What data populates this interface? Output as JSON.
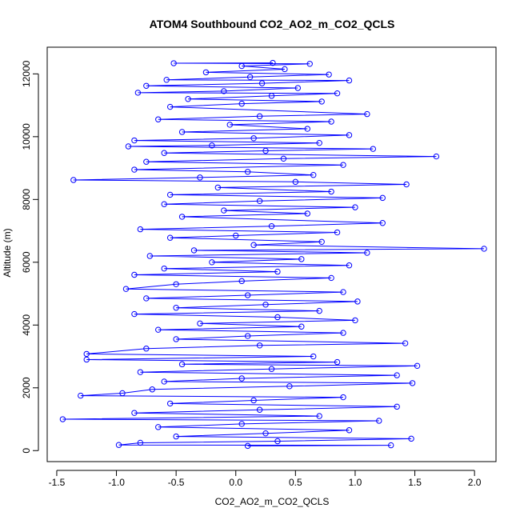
{
  "chart_data": {
    "type": "scatter",
    "title": "ATOM4 Southbound CO2_AO2_m_CO2_QCLS",
    "xlabel": "CO2_AO2_m_CO2_QCLS",
    "ylabel": "Altitude (m)",
    "xlim": [
      -1.58,
      2.18
    ],
    "ylim": [
      -350,
      12850
    ],
    "x_ticks": [
      -1.5,
      -1.0,
      -0.5,
      0.0,
      0.5,
      1.0,
      1.5,
      2.0
    ],
    "x_tick_labels": [
      "-1.5",
      "-1.0",
      "-0.5",
      "0.0",
      "0.5",
      "1.0",
      "1.5",
      "2.0"
    ],
    "y_ticks": [
      0,
      2000,
      4000,
      6000,
      8000,
      10000,
      12000
    ],
    "y_tick_labels": [
      "0",
      "2000",
      "4000",
      "6000",
      "8000",
      "10000",
      "12000"
    ],
    "series": [
      {
        "color": "#0000ff",
        "marker": "open-circle",
        "connected": true,
        "points": [
          [
            0.31,
            12350
          ],
          [
            -0.52,
            12340
          ],
          [
            0.62,
            12320
          ],
          [
            0.05,
            12250
          ],
          [
            0.41,
            12150
          ],
          [
            -0.25,
            12050
          ],
          [
            0.78,
            11980
          ],
          [
            0.12,
            11900
          ],
          [
            -0.58,
            11810
          ],
          [
            0.95,
            11790
          ],
          [
            0.22,
            11700
          ],
          [
            -0.75,
            11620
          ],
          [
            0.52,
            11550
          ],
          [
            -0.1,
            11450
          ],
          [
            -0.82,
            11400
          ],
          [
            0.85,
            11380
          ],
          [
            0.3,
            11300
          ],
          [
            -0.4,
            11200
          ],
          [
            0.72,
            11120
          ],
          [
            0.05,
            11050
          ],
          [
            -0.55,
            10950
          ],
          [
            1.1,
            10720
          ],
          [
            0.2,
            10650
          ],
          [
            -0.65,
            10550
          ],
          [
            0.8,
            10480
          ],
          [
            -0.05,
            10380
          ],
          [
            0.6,
            10250
          ],
          [
            -0.45,
            10150
          ],
          [
            0.95,
            10050
          ],
          [
            0.15,
            9950
          ],
          [
            -0.85,
            9880
          ],
          [
            0.7,
            9800
          ],
          [
            -0.2,
            9720
          ],
          [
            -0.9,
            9690
          ],
          [
            1.15,
            9610
          ],
          [
            0.25,
            9550
          ],
          [
            -0.6,
            9480
          ],
          [
            1.68,
            9370
          ],
          [
            0.4,
            9300
          ],
          [
            -0.75,
            9200
          ],
          [
            0.9,
            9100
          ],
          [
            -0.85,
            8950
          ],
          [
            0.1,
            8880
          ],
          [
            0.65,
            8780
          ],
          [
            -0.3,
            8700
          ],
          [
            -1.36,
            8620
          ],
          [
            0.5,
            8560
          ],
          [
            1.43,
            8480
          ],
          [
            -0.15,
            8380
          ],
          [
            0.8,
            8250
          ],
          [
            -0.55,
            8150
          ],
          [
            1.23,
            8050
          ],
          [
            0.2,
            7950
          ],
          [
            -0.6,
            7850
          ],
          [
            1.0,
            7750
          ],
          [
            -0.1,
            7650
          ],
          [
            0.6,
            7550
          ],
          [
            -0.45,
            7450
          ],
          [
            1.23,
            7250
          ],
          [
            0.3,
            7150
          ],
          [
            -0.8,
            7050
          ],
          [
            0.85,
            6950
          ],
          [
            0.0,
            6850
          ],
          [
            -0.55,
            6780
          ],
          [
            0.72,
            6650
          ],
          [
            0.15,
            6550
          ],
          [
            2.08,
            6430
          ],
          [
            -0.35,
            6380
          ],
          [
            1.1,
            6300
          ],
          [
            -0.72,
            6200
          ],
          [
            0.55,
            6100
          ],
          [
            -0.2,
            6000
          ],
          [
            0.95,
            5900
          ],
          [
            -0.6,
            5800
          ],
          [
            0.35,
            5700
          ],
          [
            -0.85,
            5600
          ],
          [
            0.8,
            5500
          ],
          [
            0.05,
            5400
          ],
          [
            -0.5,
            5300
          ],
          [
            -0.92,
            5150
          ],
          [
            0.9,
            5050
          ],
          [
            0.1,
            4950
          ],
          [
            -0.75,
            4850
          ],
          [
            1.02,
            4750
          ],
          [
            0.25,
            4650
          ],
          [
            -0.5,
            4550
          ],
          [
            0.7,
            4450
          ],
          [
            -0.85,
            4350
          ],
          [
            0.35,
            4250
          ],
          [
            1.0,
            4150
          ],
          [
            -0.3,
            4050
          ],
          [
            0.55,
            3950
          ],
          [
            -0.65,
            3850
          ],
          [
            0.9,
            3750
          ],
          [
            0.1,
            3650
          ],
          [
            -0.5,
            3550
          ],
          [
            1.42,
            3420
          ],
          [
            0.2,
            3350
          ],
          [
            -0.75,
            3250
          ],
          [
            -1.25,
            3080
          ],
          [
            0.65,
            3000
          ],
          [
            -1.25,
            2900
          ],
          [
            0.85,
            2820
          ],
          [
            -0.45,
            2750
          ],
          [
            1.52,
            2700
          ],
          [
            0.3,
            2600
          ],
          [
            -0.8,
            2500
          ],
          [
            1.35,
            2400
          ],
          [
            0.05,
            2300
          ],
          [
            -0.6,
            2200
          ],
          [
            1.48,
            2150
          ],
          [
            0.45,
            2050
          ],
          [
            -0.7,
            1950
          ],
          [
            -0.95,
            1830
          ],
          [
            -1.3,
            1750
          ],
          [
            0.9,
            1700
          ],
          [
            0.15,
            1600
          ],
          [
            -0.55,
            1500
          ],
          [
            1.35,
            1400
          ],
          [
            0.2,
            1300
          ],
          [
            -0.85,
            1200
          ],
          [
            0.7,
            1100
          ],
          [
            -1.45,
            1000
          ],
          [
            1.2,
            950
          ],
          [
            0.05,
            850
          ],
          [
            -0.65,
            750
          ],
          [
            0.95,
            650
          ],
          [
            0.25,
            550
          ],
          [
            -0.5,
            450
          ],
          [
            1.47,
            380
          ],
          [
            0.35,
            300
          ],
          [
            -0.8,
            250
          ],
          [
            -0.98,
            180
          ],
          [
            1.3,
            170
          ],
          [
            0.1,
            150
          ]
        ]
      }
    ]
  }
}
